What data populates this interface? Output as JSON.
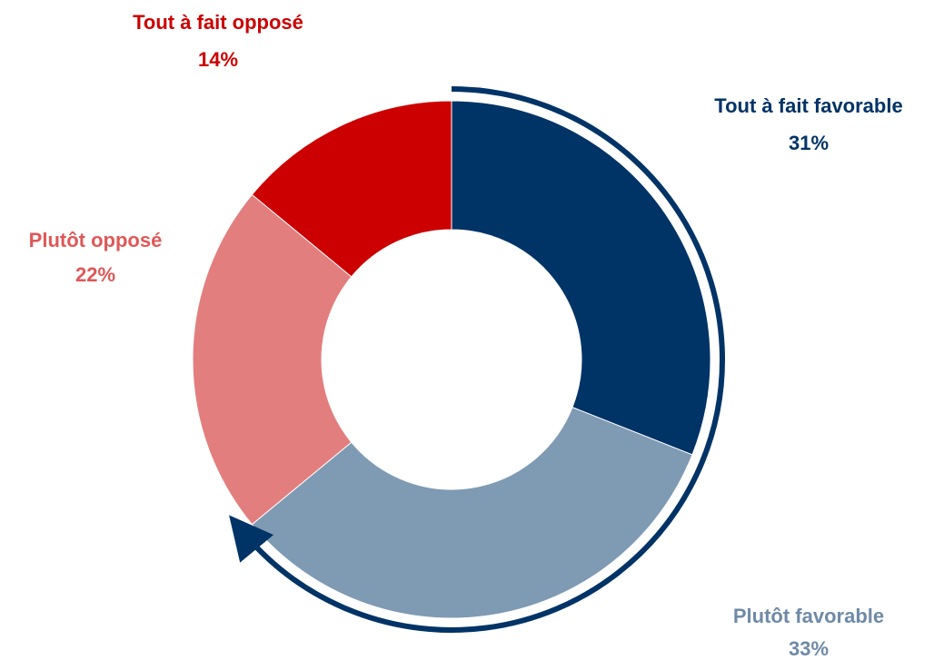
{
  "chart_data": {
    "type": "pie",
    "variant": "donut",
    "title": "",
    "slices": [
      {
        "label": "Tout à fait favorable",
        "value": 31,
        "value_label": "31%",
        "color": "#003366",
        "label_color": "#003366"
      },
      {
        "label": "Plutôt favorable",
        "value": 33,
        "value_label": "33%",
        "color": "#7f9ab3",
        "label_color": "#6f8aa6"
      },
      {
        "label": "Plutôt opposé",
        "value": 22,
        "value_label": "22%",
        "color": "#e37e7e",
        "label_color": "#e05757"
      },
      {
        "label": "Tout à fait opposé",
        "value": 14,
        "value_label": "14%",
        "color": "#cc0000",
        "label_color": "#cc0000"
      }
    ],
    "start_angle": "12 o'clock",
    "direction": "clockwise",
    "annotation": {
      "type": "arrow",
      "spans": [
        "Tout à fait favorable",
        "Plutôt favorable"
      ],
      "color": "#003366"
    }
  }
}
